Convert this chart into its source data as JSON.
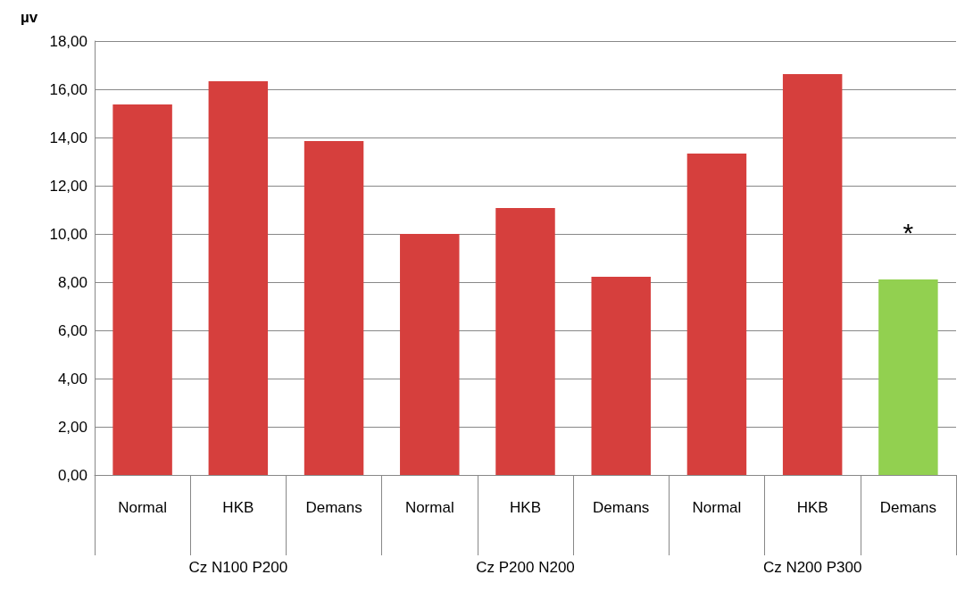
{
  "chart_data": {
    "type": "bar",
    "ylabel": "µv",
    "categories": [
      "Normal",
      "HKB",
      "Demans",
      "Normal",
      "HKB",
      "Demans",
      "Normal",
      "HKB",
      "Demans"
    ],
    "values": [
      15.37,
      16.33,
      13.85,
      10.0,
      11.07,
      8.22,
      13.33,
      16.63,
      8.11
    ],
    "colors": [
      "#d63f3d",
      "#d63f3d",
      "#d63f3d",
      "#d63f3d",
      "#d63f3d",
      "#d63f3d",
      "#d63f3d",
      "#d63f3d",
      "#92d050"
    ],
    "value_labels": [
      null,
      null,
      null,
      null,
      null,
      null,
      null,
      null,
      "*"
    ],
    "annotations": [
      "Cz N100 P200",
      "Cz P200 N200",
      "Cz N200 P300"
    ],
    "ylim": [
      0,
      18
    ],
    "yticks": [
      {
        "value": 0,
        "label": "0,00"
      },
      {
        "value": 2,
        "label": "2,00"
      },
      {
        "value": 4,
        "label": "4,00"
      },
      {
        "value": 6,
        "label": "6,00"
      },
      {
        "value": 8,
        "label": "8,00"
      },
      {
        "value": 10,
        "label": "10,00"
      },
      {
        "value": 12,
        "label": "12,00"
      },
      {
        "value": 14,
        "label": "14,00"
      },
      {
        "value": 16,
        "label": "16,00"
      },
      {
        "value": 18,
        "label": "18,00"
      }
    ],
    "grid": "y"
  }
}
